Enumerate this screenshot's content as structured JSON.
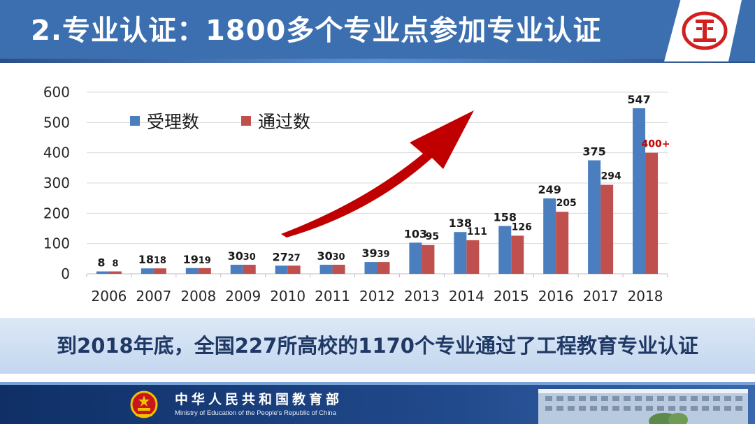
{
  "title": "2.专业认证：1800多个专业点参加专业认证",
  "summary": "到2018年底，全国227所高校的1170个专业通过了工程教育专业认证",
  "footer": {
    "ministry_cn": "中华人民共和国教育部",
    "ministry_en": "Ministry of Education of the People's Republic of China"
  },
  "colors": {
    "header": "#3c6fb0",
    "series_accepted": "#4a7ebf",
    "series_passed": "#c0504d",
    "arrow": "#c00000",
    "highlight_label": "#c00000"
  },
  "chart_data": {
    "type": "bar",
    "categories": [
      "2006",
      "2007",
      "2008",
      "2009",
      "2010",
      "2011",
      "2012",
      "2013",
      "2014",
      "2015",
      "2016",
      "2017",
      "2018"
    ],
    "series": [
      {
        "name": "受理数",
        "values": [
          8,
          18,
          19,
          30,
          27,
          30,
          39,
          103,
          138,
          158,
          249,
          375,
          547
        ],
        "labels": [
          "8",
          "18",
          "19",
          "30",
          "27",
          "30",
          "39",
          "103",
          "138",
          "158",
          "249",
          "375",
          "547"
        ]
      },
      {
        "name": "通过数",
        "values": [
          8,
          18,
          19,
          30,
          27,
          30,
          39,
          95,
          111,
          126,
          205,
          294,
          400
        ],
        "labels": [
          "8",
          "18",
          "19",
          "30",
          "27",
          "30",
          "39",
          "95",
          "111",
          "126",
          "205",
          "294",
          "400+"
        ]
      }
    ],
    "ylim": [
      0,
      600
    ],
    "yticks": [
      "0",
      "100",
      "200",
      "300",
      "400",
      "500",
      "600"
    ],
    "grid": true,
    "legend": "top-left",
    "annotation": "upward trend arrow"
  }
}
